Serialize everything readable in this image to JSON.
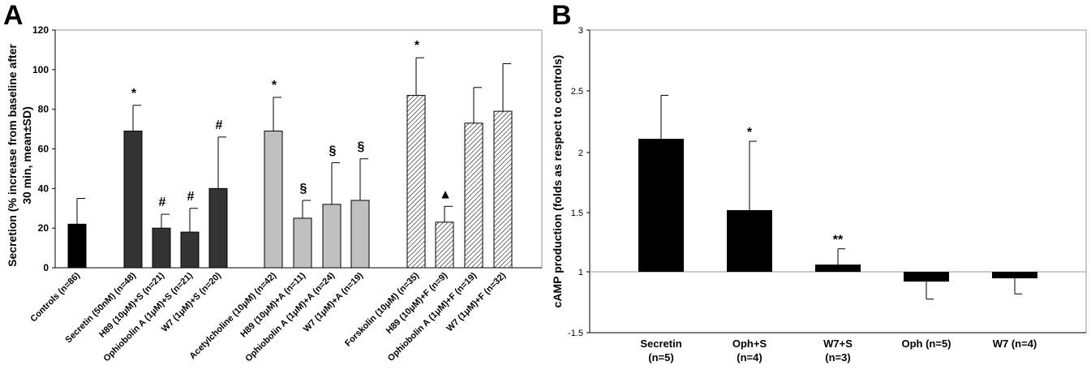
{
  "chart_data": [
    {
      "panel": "A",
      "type": "bar",
      "ylabel_lines": [
        "Secretion (% increase from baseline after",
        "30 min, mean±SD)"
      ],
      "ylim": [
        0,
        120
      ],
      "yticks": [
        0,
        20,
        40,
        60,
        80,
        100,
        120
      ],
      "grid": false,
      "bars": [
        {
          "label": "Controls (n=86)",
          "value": 22,
          "error": 13,
          "fill": "black",
          "sig": ""
        },
        {
          "label": "Secretin (50nM) (n=48)",
          "value": 69,
          "error": 13,
          "fill": "dark",
          "sig": "*"
        },
        {
          "label": "H89 (10μM)+S (n=21)",
          "value": 20,
          "error": 7,
          "fill": "dark",
          "sig": "#"
        },
        {
          "label": "Ophiobolin A (1μM)+S (n=21)",
          "value": 18,
          "error": 12,
          "fill": "dark",
          "sig": "#"
        },
        {
          "label": "W7 (1μM)+S (n=20)",
          "value": 40,
          "error": 26,
          "fill": "dark",
          "sig": "#"
        },
        {
          "label": "Acetylcholine (10μM) (n=42)",
          "value": 69,
          "error": 17,
          "fill": "light",
          "sig": "*"
        },
        {
          "label": "H89 (10μM)+A (n=11)",
          "value": 25,
          "error": 9,
          "fill": "light",
          "sig": "§"
        },
        {
          "label": "Ophiobolin A (1μM)+A (n=24)",
          "value": 32,
          "error": 21,
          "fill": "light",
          "sig": "§"
        },
        {
          "label": "W7 (1μM)+A (n=19)",
          "value": 34,
          "error": 21,
          "fill": "light",
          "sig": "§"
        },
        {
          "label": "Forskolin (10μM) (n=35)",
          "value": 87,
          "error": 19,
          "fill": "hatch",
          "sig": "*"
        },
        {
          "label": "H89 (10μM)+F (n=9)",
          "value": 23,
          "error": 8,
          "fill": "hatch",
          "sig": "▲"
        },
        {
          "label": "Ophiobolin A (1μM)+F (n=19)",
          "value": 73,
          "error": 18,
          "fill": "hatch",
          "sig": ""
        },
        {
          "label": "W7 (1μM)+F (n=32)",
          "value": 79,
          "error": 24,
          "fill": "hatch",
          "sig": ""
        }
      ],
      "colors": {
        "black": "#000000",
        "dark": "#333333",
        "light": "#c0c0c0",
        "hatch": "#ffffff"
      }
    },
    {
      "panel": "B",
      "type": "bar",
      "ylabel": "cAMP production (folds as respect to controls)",
      "ylim": [
        -1.5,
        3
      ],
      "baseline": 1,
      "ytick_values": [
        -1.5,
        1,
        1.5,
        2,
        2.5,
        3
      ],
      "ytick_labels": [
        "-1.5",
        "1",
        "1.5",
        "2",
        "2.5",
        "3"
      ],
      "grid": false,
      "bars": [
        {
          "label": [
            "Secretin",
            "(n=5)"
          ],
          "value": 2.1,
          "error": 0.36,
          "sig": ""
        },
        {
          "label": [
            "Oph+S",
            "(n=4)"
          ],
          "value": 1.51,
          "error": 0.57,
          "sig": "*"
        },
        {
          "label": [
            "W7+S",
            "(n=3)"
          ],
          "value": 1.06,
          "error": 0.13,
          "sig": "**"
        },
        {
          "label": [
            "Oph (n=5)"
          ],
          "value": 0.85,
          "error": 0.27,
          "sig": ""
        },
        {
          "label": [
            "W7 (n=4)"
          ],
          "value": 0.9,
          "error": 0.24,
          "sig": ""
        }
      ],
      "color": "#000000"
    }
  ],
  "panel_labels": {
    "a": "A",
    "b": "B"
  }
}
